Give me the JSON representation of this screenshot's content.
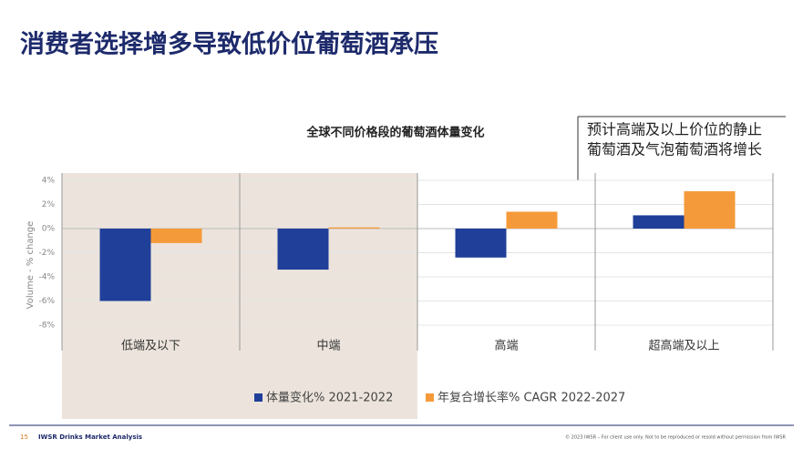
{
  "page": {
    "title": "消费者选择增多导致低价位葡萄酒承压",
    "callout": [
      "预计高端及以上价位的静止",
      "葡萄酒及气泡葡萄酒将增长"
    ],
    "footer_page": "15",
    "footer_brand": "IWSR Drinks Market Analysis",
    "footer_note": "© 2023 IWSR – For client use only. Not to be reproduced or resold without permission from IWSR"
  },
  "chart_data": {
    "type": "bar",
    "title": "全球不同价格段的葡萄酒体量变化",
    "y_label": "Volume - % change",
    "categories": [
      "低端及以下",
      "中端",
      "高端",
      "超高端及以上"
    ],
    "series": [
      {
        "name": "体量变化% 2021-2022",
        "color": "#1f3f99",
        "values": [
          -6,
          -3.4,
          -2.4,
          1.1
        ]
      },
      {
        "name": "年复合增长率% CAGR 2022-2027",
        "color": "#f59a3a",
        "values": [
          -1.2,
          0.1,
          1.4,
          3.1
        ]
      }
    ],
    "ylim": [
      -8,
      4
    ],
    "yticks": [
      {
        "value": -8,
        "label": "-8%"
      },
      {
        "value": -6,
        "label": "-6%"
      },
      {
        "value": -4,
        "label": "-4%"
      },
      {
        "value": -2,
        "label": "-2%"
      },
      {
        "value": 0,
        "label": "0%"
      },
      {
        "value": 2,
        "label": "2%"
      },
      {
        "value": 4,
        "label": "4%"
      }
    ]
  }
}
